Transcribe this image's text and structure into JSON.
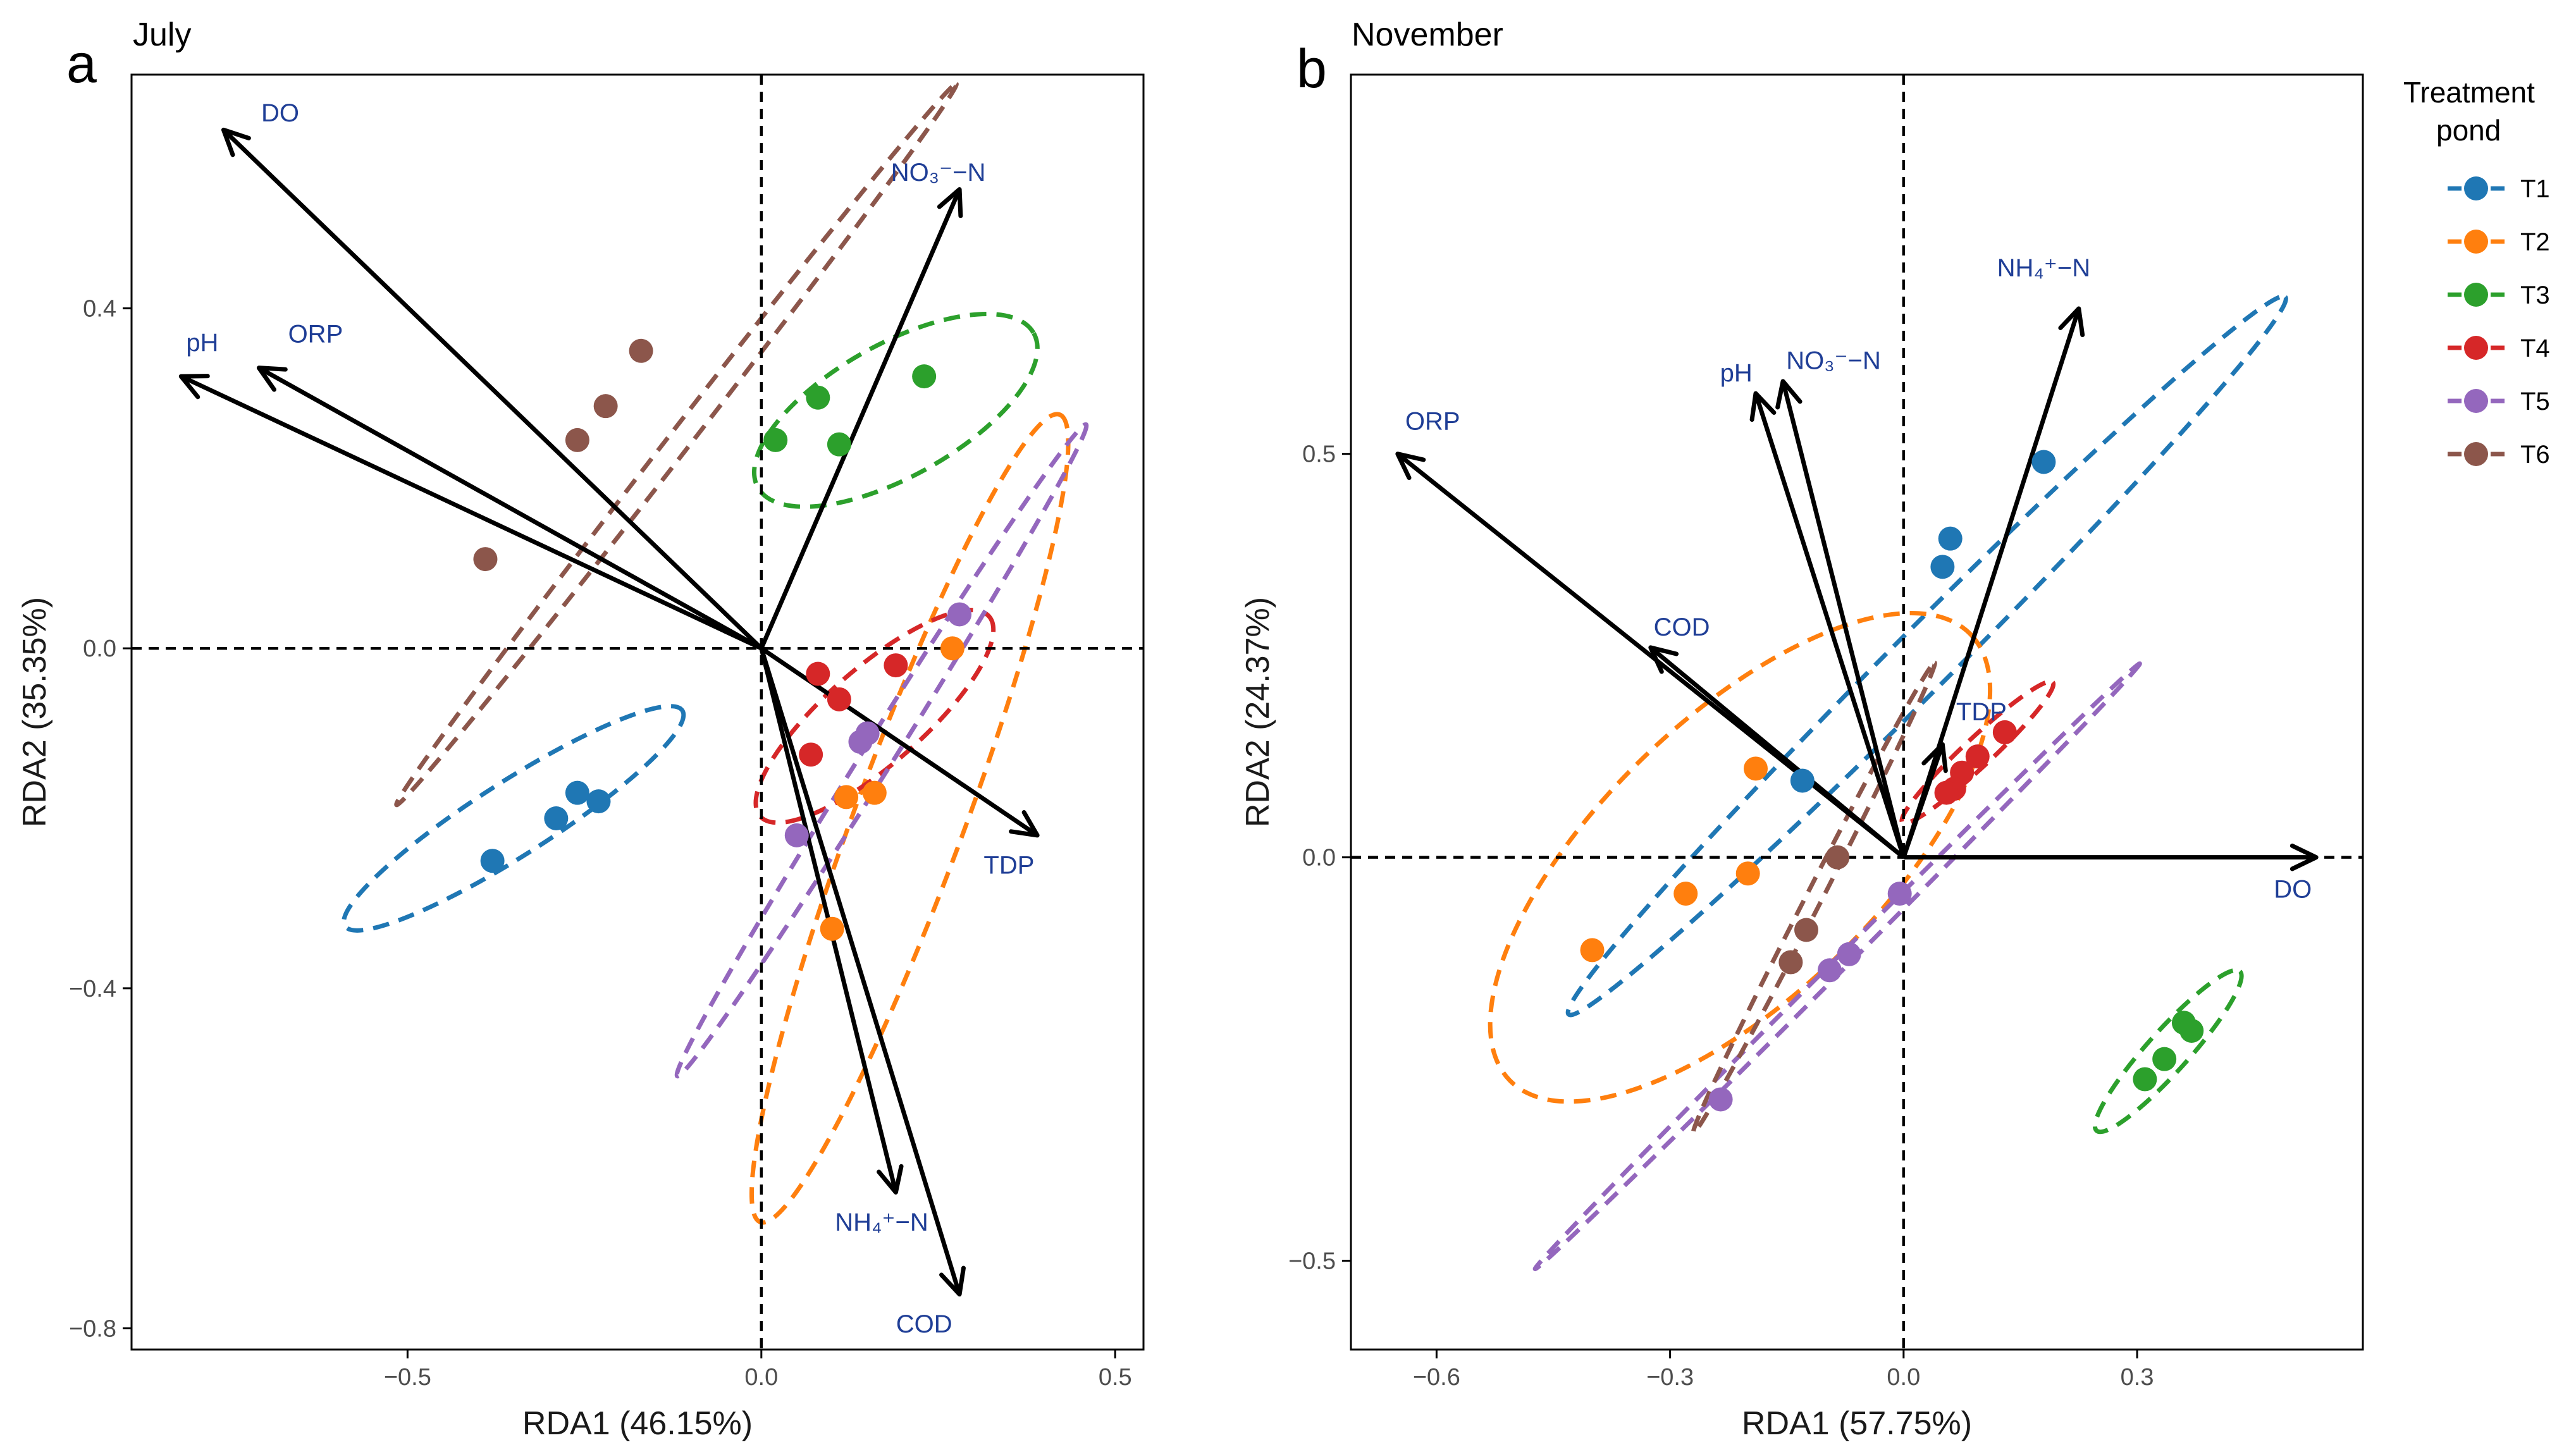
{
  "chart_data": [
    {
      "panel": "a",
      "title": "July",
      "type": "scatter",
      "xlabel": "RDA1 (46.15%)",
      "ylabel": "RDA2 (35.35%)",
      "xlim": [
        -0.89,
        0.54
      ],
      "ylim": [
        -0.825,
        0.675
      ],
      "xticks": [
        -0.5,
        0.0,
        0.5
      ],
      "xtick_labels": [
        "−0.5",
        "0.0",
        "0.5"
      ],
      "yticks": [
        -0.8,
        -0.4,
        0.0,
        0.4
      ],
      "ytick_labels": [
        "−0.8",
        "−0.4",
        "0.0",
        "0.4"
      ],
      "arrows": [
        {
          "label": "DO",
          "x": -0.76,
          "y": 0.61,
          "lx": -0.68,
          "ly": 0.62
        },
        {
          "label": "pH",
          "x": -0.82,
          "y": 0.32,
          "lx": -0.79,
          "ly": 0.35
        },
        {
          "label": "ORP",
          "x": -0.71,
          "y": 0.33,
          "lx": -0.63,
          "ly": 0.36
        },
        {
          "label": "NO₃⁻−N",
          "x": 0.28,
          "y": 0.54,
          "lx": 0.25,
          "ly": 0.55
        },
        {
          "label": "TDP",
          "x": 0.39,
          "y": -0.22,
          "lx": 0.35,
          "ly": -0.265
        },
        {
          "label": "NH₄⁺−N",
          "x": 0.19,
          "y": -0.64,
          "lx": 0.17,
          "ly": -0.685
        },
        {
          "label": "COD",
          "x": 0.28,
          "y": -0.76,
          "lx": 0.23,
          "ly": -0.805
        }
      ],
      "series": [
        {
          "name": "T1",
          "points": [
            [
              -0.38,
              -0.25
            ],
            [
              -0.29,
              -0.2
            ],
            [
              -0.26,
              -0.17
            ],
            [
              -0.23,
              -0.18
            ]
          ],
          "ellipse": {
            "cx": -0.35,
            "cy": -0.2,
            "a": 0.27,
            "b": 0.045,
            "angle": 28
          }
        },
        {
          "name": "T2",
          "points": [
            [
              0.27,
              0.0
            ],
            [
              0.16,
              -0.17
            ],
            [
              0.12,
              -0.175
            ],
            [
              0.1,
              -0.33
            ]
          ],
          "ellipse": {
            "cx": 0.21,
            "cy": -0.2,
            "a": 0.52,
            "b": 0.075,
            "angle": 66
          }
        },
        {
          "name": "T3",
          "points": [
            [
              0.02,
              0.245
            ],
            [
              0.08,
              0.295
            ],
            [
              0.11,
              0.24
            ],
            [
              0.23,
              0.32
            ]
          ],
          "ellipse": {
            "cx": 0.19,
            "cy": 0.28,
            "a": 0.215,
            "b": 0.08,
            "angle": 25
          }
        },
        {
          "name": "T4",
          "points": [
            [
              0.08,
              -0.03
            ],
            [
              0.11,
              -0.06
            ],
            [
              0.19,
              -0.02
            ],
            [
              0.07,
              -0.125
            ]
          ],
          "ellipse": {
            "cx": 0.16,
            "cy": -0.08,
            "a": 0.2,
            "b": 0.06,
            "angle": 36
          }
        },
        {
          "name": "T5",
          "points": [
            [
              0.28,
              0.04
            ],
            [
              0.15,
              -0.1
            ],
            [
              0.14,
              -0.11
            ],
            [
              0.05,
              -0.22
            ]
          ],
          "ellipse": {
            "cx": 0.17,
            "cy": -0.12,
            "a": 0.48,
            "b": 0.02,
            "angle": 53
          }
        },
        {
          "name": "T6",
          "points": [
            [
              -0.39,
              0.105
            ],
            [
              -0.26,
              0.245
            ],
            [
              -0.22,
              0.285
            ],
            [
              -0.17,
              0.35
            ]
          ],
          "ellipse": {
            "cx": -0.12,
            "cy": 0.24,
            "a": 0.58,
            "b": 0.014,
            "angle": 47
          }
        }
      ]
    },
    {
      "panel": "b",
      "title": "November",
      "type": "scatter",
      "xlabel": "RDA1 (57.75%)",
      "ylabel": "RDA2 (24.37%)",
      "xlim": [
        -0.71,
        0.59
      ],
      "ylim": [
        -0.61,
        0.97
      ],
      "xticks": [
        -0.6,
        -0.3,
        0.0,
        0.3
      ],
      "xtick_labels": [
        "−0.6",
        "−0.3",
        "0.0",
        "0.3"
      ],
      "yticks": [
        -0.5,
        0.0,
        0.5
      ],
      "ytick_labels": [
        "−0.5",
        "0.0",
        "0.5"
      ],
      "arrows": [
        {
          "label": "ORP",
          "x": -0.65,
          "y": 0.5,
          "lx": -0.605,
          "ly": 0.53
        },
        {
          "label": "pH",
          "x": -0.19,
          "y": 0.575,
          "lx": -0.215,
          "ly": 0.59
        },
        {
          "label": "NO₃⁻−N",
          "x": -0.155,
          "y": 0.59,
          "lx": -0.09,
          "ly": 0.605
        },
        {
          "label": "NH₄⁺−N",
          "x": 0.225,
          "y": 0.68,
          "lx": 0.18,
          "ly": 0.72
        },
        {
          "label": "COD",
          "x": -0.325,
          "y": 0.26,
          "lx": -0.285,
          "ly": 0.275
        },
        {
          "label": "TDP",
          "x": 0.05,
          "y": 0.14,
          "lx": 0.1,
          "ly": 0.17
        },
        {
          "label": "DO",
          "x": 0.53,
          "y": 0.0,
          "lx": 0.5,
          "ly": -0.05
        }
      ],
      "series": [
        {
          "name": "T1",
          "points": [
            [
              0.18,
              0.49
            ],
            [
              0.06,
              0.395
            ],
            [
              0.05,
              0.36
            ],
            [
              -0.13,
              0.095
            ]
          ],
          "ellipse": {
            "cx": 0.03,
            "cy": 0.25,
            "a": 0.64,
            "b": 0.038,
            "angle": 44
          }
        },
        {
          "name": "T2",
          "points": [
            [
              -0.19,
              0.11
            ],
            [
              -0.2,
              -0.02
            ],
            [
              -0.28,
              -0.045
            ],
            [
              -0.4,
              -0.115
            ]
          ],
          "ellipse": {
            "cx": -0.21,
            "cy": 0.0,
            "a": 0.405,
            "b": 0.175,
            "angle": 43
          }
        },
        {
          "name": "T3",
          "points": [
            [
              0.31,
              -0.275
            ],
            [
              0.335,
              -0.25
            ],
            [
              0.36,
              -0.205
            ],
            [
              0.37,
              -0.215
            ]
          ],
          "ellipse": {
            "cx": 0.34,
            "cy": -0.24,
            "a": 0.135,
            "b": 0.026,
            "angle": 47
          }
        },
        {
          "name": "T4",
          "points": [
            [
              0.13,
              0.155
            ],
            [
              0.095,
              0.125
            ],
            [
              0.075,
              0.105
            ],
            [
              0.065,
              0.085
            ],
            [
              0.055,
              0.08
            ]
          ],
          "ellipse": {
            "cx": 0.095,
            "cy": 0.13,
            "a": 0.13,
            "b": 0.018,
            "angle": 42
          }
        },
        {
          "name": "T5",
          "points": [
            [
              -0.005,
              -0.045
            ],
            [
              -0.07,
              -0.12
            ],
            [
              -0.095,
              -0.14
            ],
            [
              -0.235,
              -0.3
            ]
          ],
          "ellipse": {
            "cx": -0.085,
            "cy": -0.135,
            "a": 0.54,
            "b": 0.008,
            "angle": 44
          }
        },
        {
          "name": "T6",
          "points": [
            [
              -0.085,
              0.0
            ],
            [
              -0.125,
              -0.09
            ],
            [
              -0.145,
              -0.13
            ]
          ],
          "ellipse": {
            "cx": -0.115,
            "cy": -0.05,
            "a": 0.33,
            "b": 0.01,
            "angle": 62
          }
        }
      ]
    }
  ],
  "legend": {
    "title_line1": "Treatment",
    "title_line2": "pond",
    "items": [
      {
        "name": "T1",
        "color": "#1f77b4"
      },
      {
        "name": "T2",
        "color": "#ff7f0e"
      },
      {
        "name": "T3",
        "color": "#2ca02c"
      },
      {
        "name": "T4",
        "color": "#d62728"
      },
      {
        "name": "T5",
        "color": "#9467bd"
      },
      {
        "name": "T6",
        "color": "#8c564b"
      }
    ]
  }
}
